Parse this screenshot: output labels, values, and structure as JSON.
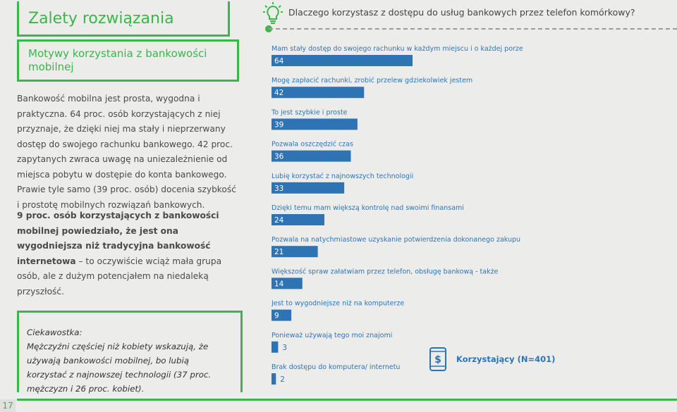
{
  "page": {
    "title": "Zalety rozwiązania",
    "subtitle": "Motywy korzystania z bankowości mobilnej",
    "paragraph1": "Bankowość mobilna jest prosta, wygodna i praktyczna. 64 proc. osób korzystających z niej przyznaje, że dzięki niej ma stały i nieprzerwany dostęp do swojego rachunku bankowego. 42 proc. zapytanych zwraca uwagę na uniezależnienie od miejsca pobytu w dostępie do konta bankowego. Prawie tyle samo (39 proc. osób) docenia szybkość i prostotę mobilnych rozwiązań bankowych.",
    "paragraph2_bold": "9 proc. osób korzystających z bankowości mobilnej powiedziało, że jest ona wygodniejsza niż tradycyjna bankowość internetowa",
    "paragraph2_rest": " – to oczywiście wciąż mała grupa osób, ale z dużym potencjałem na niedaleką przyszłość.",
    "ciekawostka_title": "Ciekawostka:",
    "ciekawostka_text": "Mężczyźni częściej niż kobiety wskazują, że używają bankowości mobilnej, bo lubią korzystać z najnowszej technologii (37 proc. mężczyzn i 26 proc. kobiet).",
    "page_number": "17"
  },
  "colors": {
    "green": "#3cb54a",
    "bar": "#2e74b5",
    "label": "#2e74b5",
    "text": "#4a4a4a"
  },
  "icons": {
    "question": "lightbulb-icon",
    "legend": "phone-dollar-icon"
  },
  "chart_data": {
    "type": "bar",
    "title": "Dlaczego korzystasz z dostępu do usług bankowych przez telefon komórkowy?",
    "orientation": "horizontal",
    "categories": [
      "Mam stały dostęp do swojego rachunku w każdym miejscu i o każdej porze",
      "Mogę zapłacić rachunki, zrobić przelew gdziekolwiek jestem",
      "To jest szybkie i proste",
      "Pozwala oszczędzić czas",
      "Lubię korzystać z najnowszych technologii",
      "Dzięki temu mam większą kontrolę nad swoimi finansami",
      "Pozwala na natychmiastowe uzyskanie potwierdzenia dokonanego zakupu",
      "Większość spraw załatwiam przez telefon, obsługę bankową - także",
      "Jest to wygodniejsze niż na komputerze",
      "Ponieważ używają tego moi znajomi",
      "Brak dostępu do komputera/ internetu"
    ],
    "series": [
      {
        "name": "Korzystający (N=401)",
        "values": [
          64,
          42,
          39,
          36,
          33,
          24,
          21,
          14,
          9,
          3,
          2
        ]
      }
    ],
    "xlim": [
      0,
      100
    ],
    "grid": false
  }
}
